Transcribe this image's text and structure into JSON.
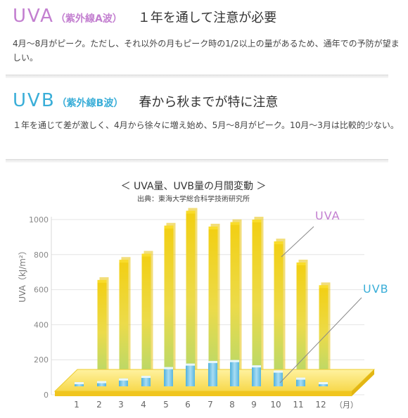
{
  "uva": {
    "code": "UVA",
    "sub": "（紫外線A波）",
    "heading": "１年を通して注意が必要",
    "desc": "4月～8月がピーク。ただし、それ以外の月もピーク時の1/2以上の量があるため、通年での予防が望ましい。",
    "color": "#c37fd0"
  },
  "uvb": {
    "code": "UVB",
    "sub": "（紫外線B波）",
    "heading": "春から秋までが特に注意",
    "desc": "１年を通じて差が激しく、4月から徐々に増え始め、5月～8月がピーク。10月～3月は比較的少ない。",
    "color": "#3aaed8"
  },
  "chart_data": {
    "type": "bar",
    "title": "＜ UVA量、UVB量の月間変動 ＞",
    "source": "出典：東海大学総合科学技術研究所",
    "ylabel": "UVA（kJ/m²）",
    "ylim": [
      0,
      1000
    ],
    "yticks": [
      0,
      200,
      400,
      600,
      800,
      1000
    ],
    "categories": [
      "1",
      "2",
      "3",
      "4",
      "5",
      "6",
      "7",
      "8",
      "9",
      "10",
      "11",
      "12"
    ],
    "x_unit": "（月）",
    "series": [
      {
        "name": "UVA",
        "color": "#f4d21a",
        "values": [
          0,
          655,
          770,
          805,
          965,
          1050,
          960,
          985,
          1000,
          875,
          755,
          625
        ]
      },
      {
        "name": "UVB",
        "color": "#6ec6e8",
        "values": [
          5,
          30,
          45,
          60,
          110,
          130,
          145,
          150,
          120,
          90,
          50,
          20
        ]
      }
    ],
    "grid": true
  }
}
